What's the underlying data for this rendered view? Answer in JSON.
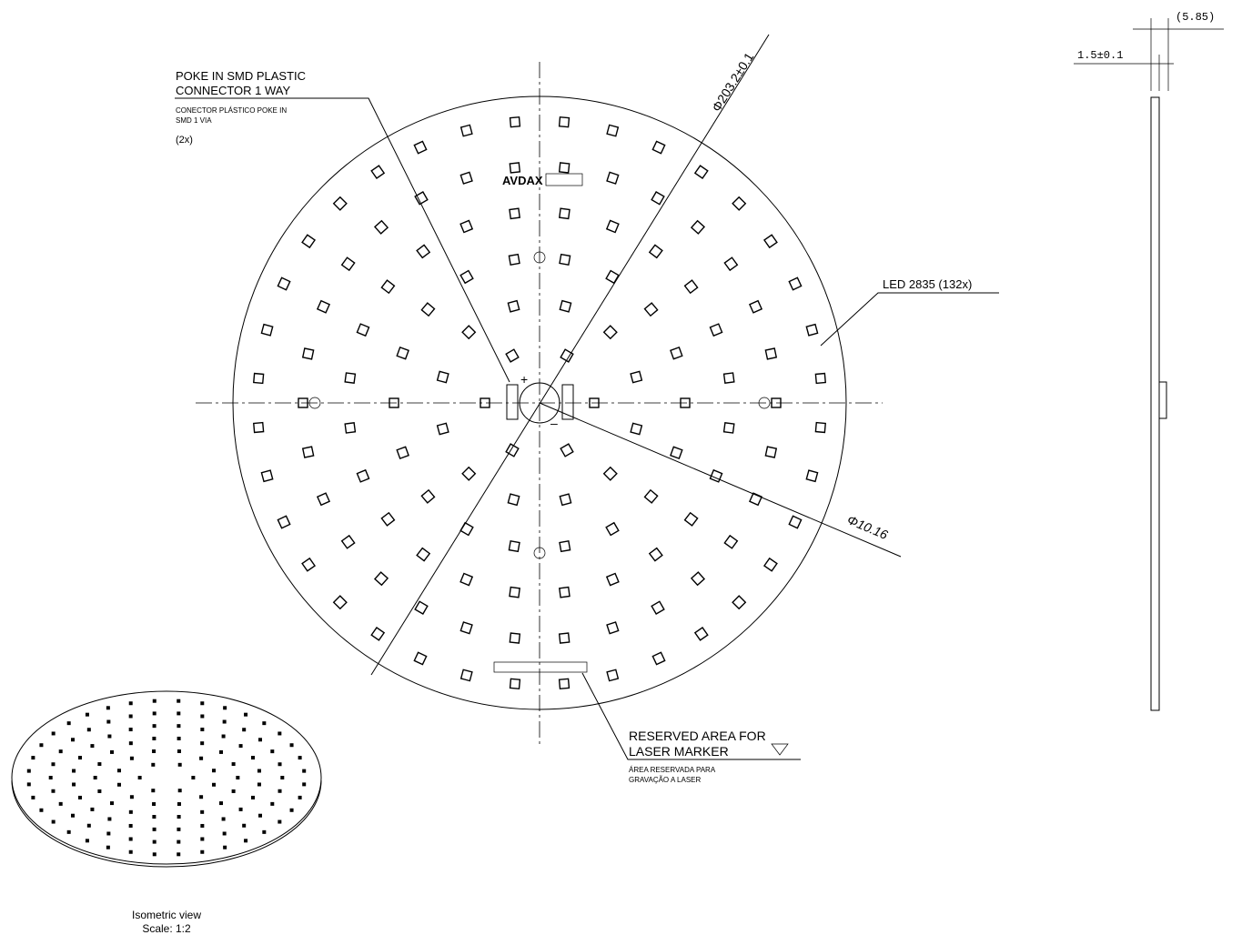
{
  "connector_callout": {
    "line1": "POKE IN SMD PLASTIC",
    "line2": "CONNECTOR 1 WAY",
    "sub1": "CONECTOR PLÁSTICO POKE IN",
    "sub2": "SMD 1 VIA",
    "count": "(2x)"
  },
  "led_callout": {
    "label": "LED 2835 (132x)"
  },
  "laser_callout": {
    "line1": "RESERVED AREA FOR",
    "line2": "LASER MARKER",
    "sub1": "ÁREA RESERVADA PARA",
    "sub2": "GRAVAÇÃO A LASER"
  },
  "dimensions": {
    "diameter": "Φ203.2±0.1",
    "hole": "Φ10.16",
    "thickness": "1.5±0.1",
    "height": "(5.85)"
  },
  "logo": "AVDAX",
  "isometric": {
    "title": "Isometric view",
    "scale": "Scale:  1:2"
  }
}
